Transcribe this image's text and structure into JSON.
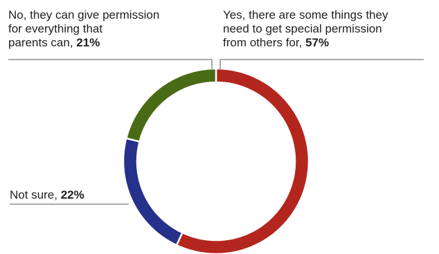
{
  "chart_data": {
    "type": "pie",
    "donut": true,
    "title": "",
    "legend": "none",
    "categories": [
      "Yes, there are some things they need to get special permission from others for",
      "Not sure",
      "No, they can give permission for everything that parents can"
    ],
    "values": [
      57,
      22,
      21
    ],
    "value_labels": [
      "57%",
      "22%",
      "21%"
    ],
    "colors": [
      "#b3261e",
      "#25318a",
      "#4a6b16"
    ]
  },
  "labels": {
    "yes": {
      "text_lines": [
        "Yes, there are some things they",
        "need to get special permission",
        "from others for,"
      ],
      "value": "57%"
    },
    "no": {
      "text_lines": [
        "No, they can give permission",
        "for everything that",
        "parents can,"
      ],
      "value": "21%"
    },
    "not_sure": {
      "text_lines": [
        "Not sure,"
      ],
      "value": "22%"
    }
  }
}
